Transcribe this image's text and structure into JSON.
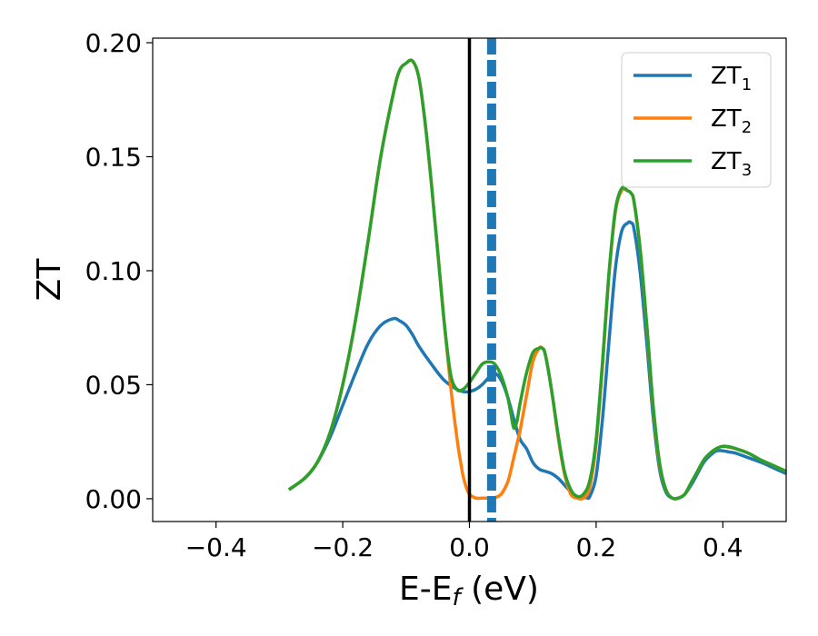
{
  "chart_data": {
    "type": "line",
    "xlabel_main": "E-E",
    "xlabel_sub": "f",
    "xlabel_unit": " (eV)",
    "ylabel": "ZT",
    "xlim": [
      -0.5,
      0.5
    ],
    "ylim": [
      -0.01,
      0.202
    ],
    "xticks": [
      -0.4,
      -0.2,
      0.0,
      0.2,
      0.4
    ],
    "xtick_labels": [
      "−0.4",
      "−0.2",
      "0.0",
      "0.2",
      "0.4"
    ],
    "yticks": [
      0.0,
      0.05,
      0.1,
      0.15,
      0.2
    ],
    "ytick_labels": [
      "0.00",
      "0.05",
      "0.10",
      "0.15",
      "0.20"
    ],
    "legend_position": "top-right",
    "grid": false,
    "vlines": [
      {
        "x": 0.0,
        "style": "solid",
        "color": "#000000"
      },
      {
        "x": 0.035,
        "style": "dashed",
        "color": "#1f77b4"
      }
    ],
    "series": [
      {
        "name_main": "ZT",
        "name_sub": "1",
        "color": "#1f77b4",
        "x": [
          -0.285,
          -0.26,
          -0.24,
          -0.22,
          -0.2,
          -0.18,
          -0.16,
          -0.14,
          -0.12,
          -0.11,
          -0.1,
          -0.09,
          -0.08,
          -0.06,
          -0.04,
          -0.02,
          -0.01,
          0.0,
          0.01,
          0.02,
          0.03,
          0.04,
          0.05,
          0.06,
          0.07,
          0.08,
          0.09,
          0.1,
          0.11,
          0.12,
          0.13,
          0.14,
          0.15,
          0.16,
          0.17,
          0.175,
          0.18,
          0.185,
          0.19,
          0.2,
          0.21,
          0.22,
          0.23,
          0.24,
          0.25,
          0.255,
          0.26,
          0.27,
          0.28,
          0.29,
          0.3,
          0.31,
          0.32,
          0.33,
          0.34,
          0.35,
          0.36,
          0.37,
          0.38,
          0.39,
          0.4,
          0.41,
          0.42,
          0.44,
          0.46,
          0.48,
          0.5
        ],
        "y": [
          0.004,
          0.009,
          0.016,
          0.027,
          0.041,
          0.055,
          0.068,
          0.076,
          0.079,
          0.078,
          0.076,
          0.072,
          0.067,
          0.059,
          0.052,
          0.048,
          0.047,
          0.047,
          0.048,
          0.05,
          0.053,
          0.055,
          0.052,
          0.045,
          0.035,
          0.026,
          0.022,
          0.016,
          0.013,
          0.012,
          0.011,
          0.009,
          0.006,
          0.003,
          0.001,
          0.0005,
          0.0005,
          0.0005,
          0.001,
          0.01,
          0.035,
          0.068,
          0.1,
          0.117,
          0.121,
          0.121,
          0.118,
          0.098,
          0.068,
          0.036,
          0.013,
          0.003,
          0.0003,
          0.0003,
          0.002,
          0.006,
          0.011,
          0.016,
          0.019,
          0.021,
          0.021,
          0.0205,
          0.02,
          0.018,
          0.016,
          0.0135,
          0.011
        ]
      },
      {
        "name_main": "ZT",
        "name_sub": "2",
        "color": "#ff7f0e",
        "x": [
          -0.285,
          -0.26,
          -0.24,
          -0.22,
          -0.2,
          -0.18,
          -0.16,
          -0.14,
          -0.12,
          -0.11,
          -0.1,
          -0.09,
          -0.08,
          -0.07,
          -0.06,
          -0.05,
          -0.04,
          -0.03,
          -0.02,
          -0.015,
          -0.01,
          -0.005,
          0.0,
          0.01,
          0.02,
          0.03,
          0.04,
          0.05,
          0.06,
          0.065,
          0.07,
          0.075,
          0.08,
          0.09,
          0.1,
          0.11,
          0.115,
          0.12,
          0.13,
          0.14,
          0.15,
          0.16,
          0.17,
          0.18,
          0.19,
          0.2,
          0.21,
          0.22,
          0.23,
          0.24,
          0.25,
          0.255,
          0.26,
          0.27,
          0.28,
          0.29,
          0.3,
          0.31,
          0.32,
          0.33,
          0.34,
          0.35,
          0.36,
          0.37,
          0.38,
          0.39,
          0.4,
          0.41,
          0.42,
          0.44,
          0.46,
          0.48,
          0.5
        ],
        "y": [
          0.004,
          0.009,
          0.016,
          0.029,
          0.05,
          0.078,
          0.113,
          0.15,
          0.178,
          0.188,
          0.191,
          0.192,
          0.185,
          0.165,
          0.138,
          0.108,
          0.078,
          0.05,
          0.027,
          0.018,
          0.01,
          0.005,
          0.002,
          0.0003,
          0.0003,
          0.0003,
          0.0005,
          0.002,
          0.007,
          0.012,
          0.018,
          0.024,
          0.03,
          0.045,
          0.06,
          0.066,
          0.066,
          0.063,
          0.047,
          0.027,
          0.011,
          0.002,
          0.0003,
          0.0003,
          0.005,
          0.024,
          0.058,
          0.097,
          0.125,
          0.135,
          0.135,
          0.134,
          0.13,
          0.108,
          0.075,
          0.04,
          0.015,
          0.004,
          0.0003,
          0.0003,
          0.002,
          0.007,
          0.012,
          0.017,
          0.02,
          0.022,
          0.023,
          0.0225,
          0.022,
          0.02,
          0.017,
          0.0145,
          0.012
        ]
      },
      {
        "name_main": "ZT",
        "name_sub": "3",
        "color": "#2ca02c",
        "x": [
          -0.285,
          -0.26,
          -0.24,
          -0.22,
          -0.2,
          -0.18,
          -0.16,
          -0.14,
          -0.12,
          -0.11,
          -0.1,
          -0.09,
          -0.08,
          -0.07,
          -0.06,
          -0.05,
          -0.04,
          -0.03,
          -0.02,
          -0.01,
          0.0,
          0.01,
          0.02,
          0.03,
          0.04,
          0.05,
          0.06,
          0.065,
          0.07,
          0.075,
          0.08,
          0.09,
          0.1,
          0.11,
          0.115,
          0.12,
          0.13,
          0.14,
          0.15,
          0.16,
          0.17,
          0.18,
          0.19,
          0.2,
          0.21,
          0.22,
          0.23,
          0.24,
          0.25,
          0.255,
          0.26,
          0.27,
          0.28,
          0.29,
          0.3,
          0.31,
          0.32,
          0.33,
          0.34,
          0.35,
          0.36,
          0.37,
          0.38,
          0.39,
          0.4,
          0.41,
          0.42,
          0.44,
          0.46,
          0.48,
          0.5
        ],
        "y": [
          0.004,
          0.009,
          0.016,
          0.029,
          0.05,
          0.078,
          0.113,
          0.15,
          0.178,
          0.188,
          0.191,
          0.192,
          0.185,
          0.165,
          0.138,
          0.108,
          0.078,
          0.055,
          0.048,
          0.048,
          0.051,
          0.055,
          0.059,
          0.06,
          0.059,
          0.054,
          0.045,
          0.038,
          0.031,
          0.034,
          0.042,
          0.055,
          0.064,
          0.066,
          0.066,
          0.063,
          0.047,
          0.028,
          0.012,
          0.004,
          0.001,
          0.002,
          0.008,
          0.026,
          0.06,
          0.098,
          0.126,
          0.136,
          0.135,
          0.134,
          0.13,
          0.108,
          0.076,
          0.041,
          0.016,
          0.004,
          0.0003,
          0.0003,
          0.002,
          0.007,
          0.012,
          0.017,
          0.02,
          0.022,
          0.023,
          0.0228,
          0.022,
          0.02,
          0.017,
          0.0145,
          0.012
        ]
      }
    ]
  }
}
